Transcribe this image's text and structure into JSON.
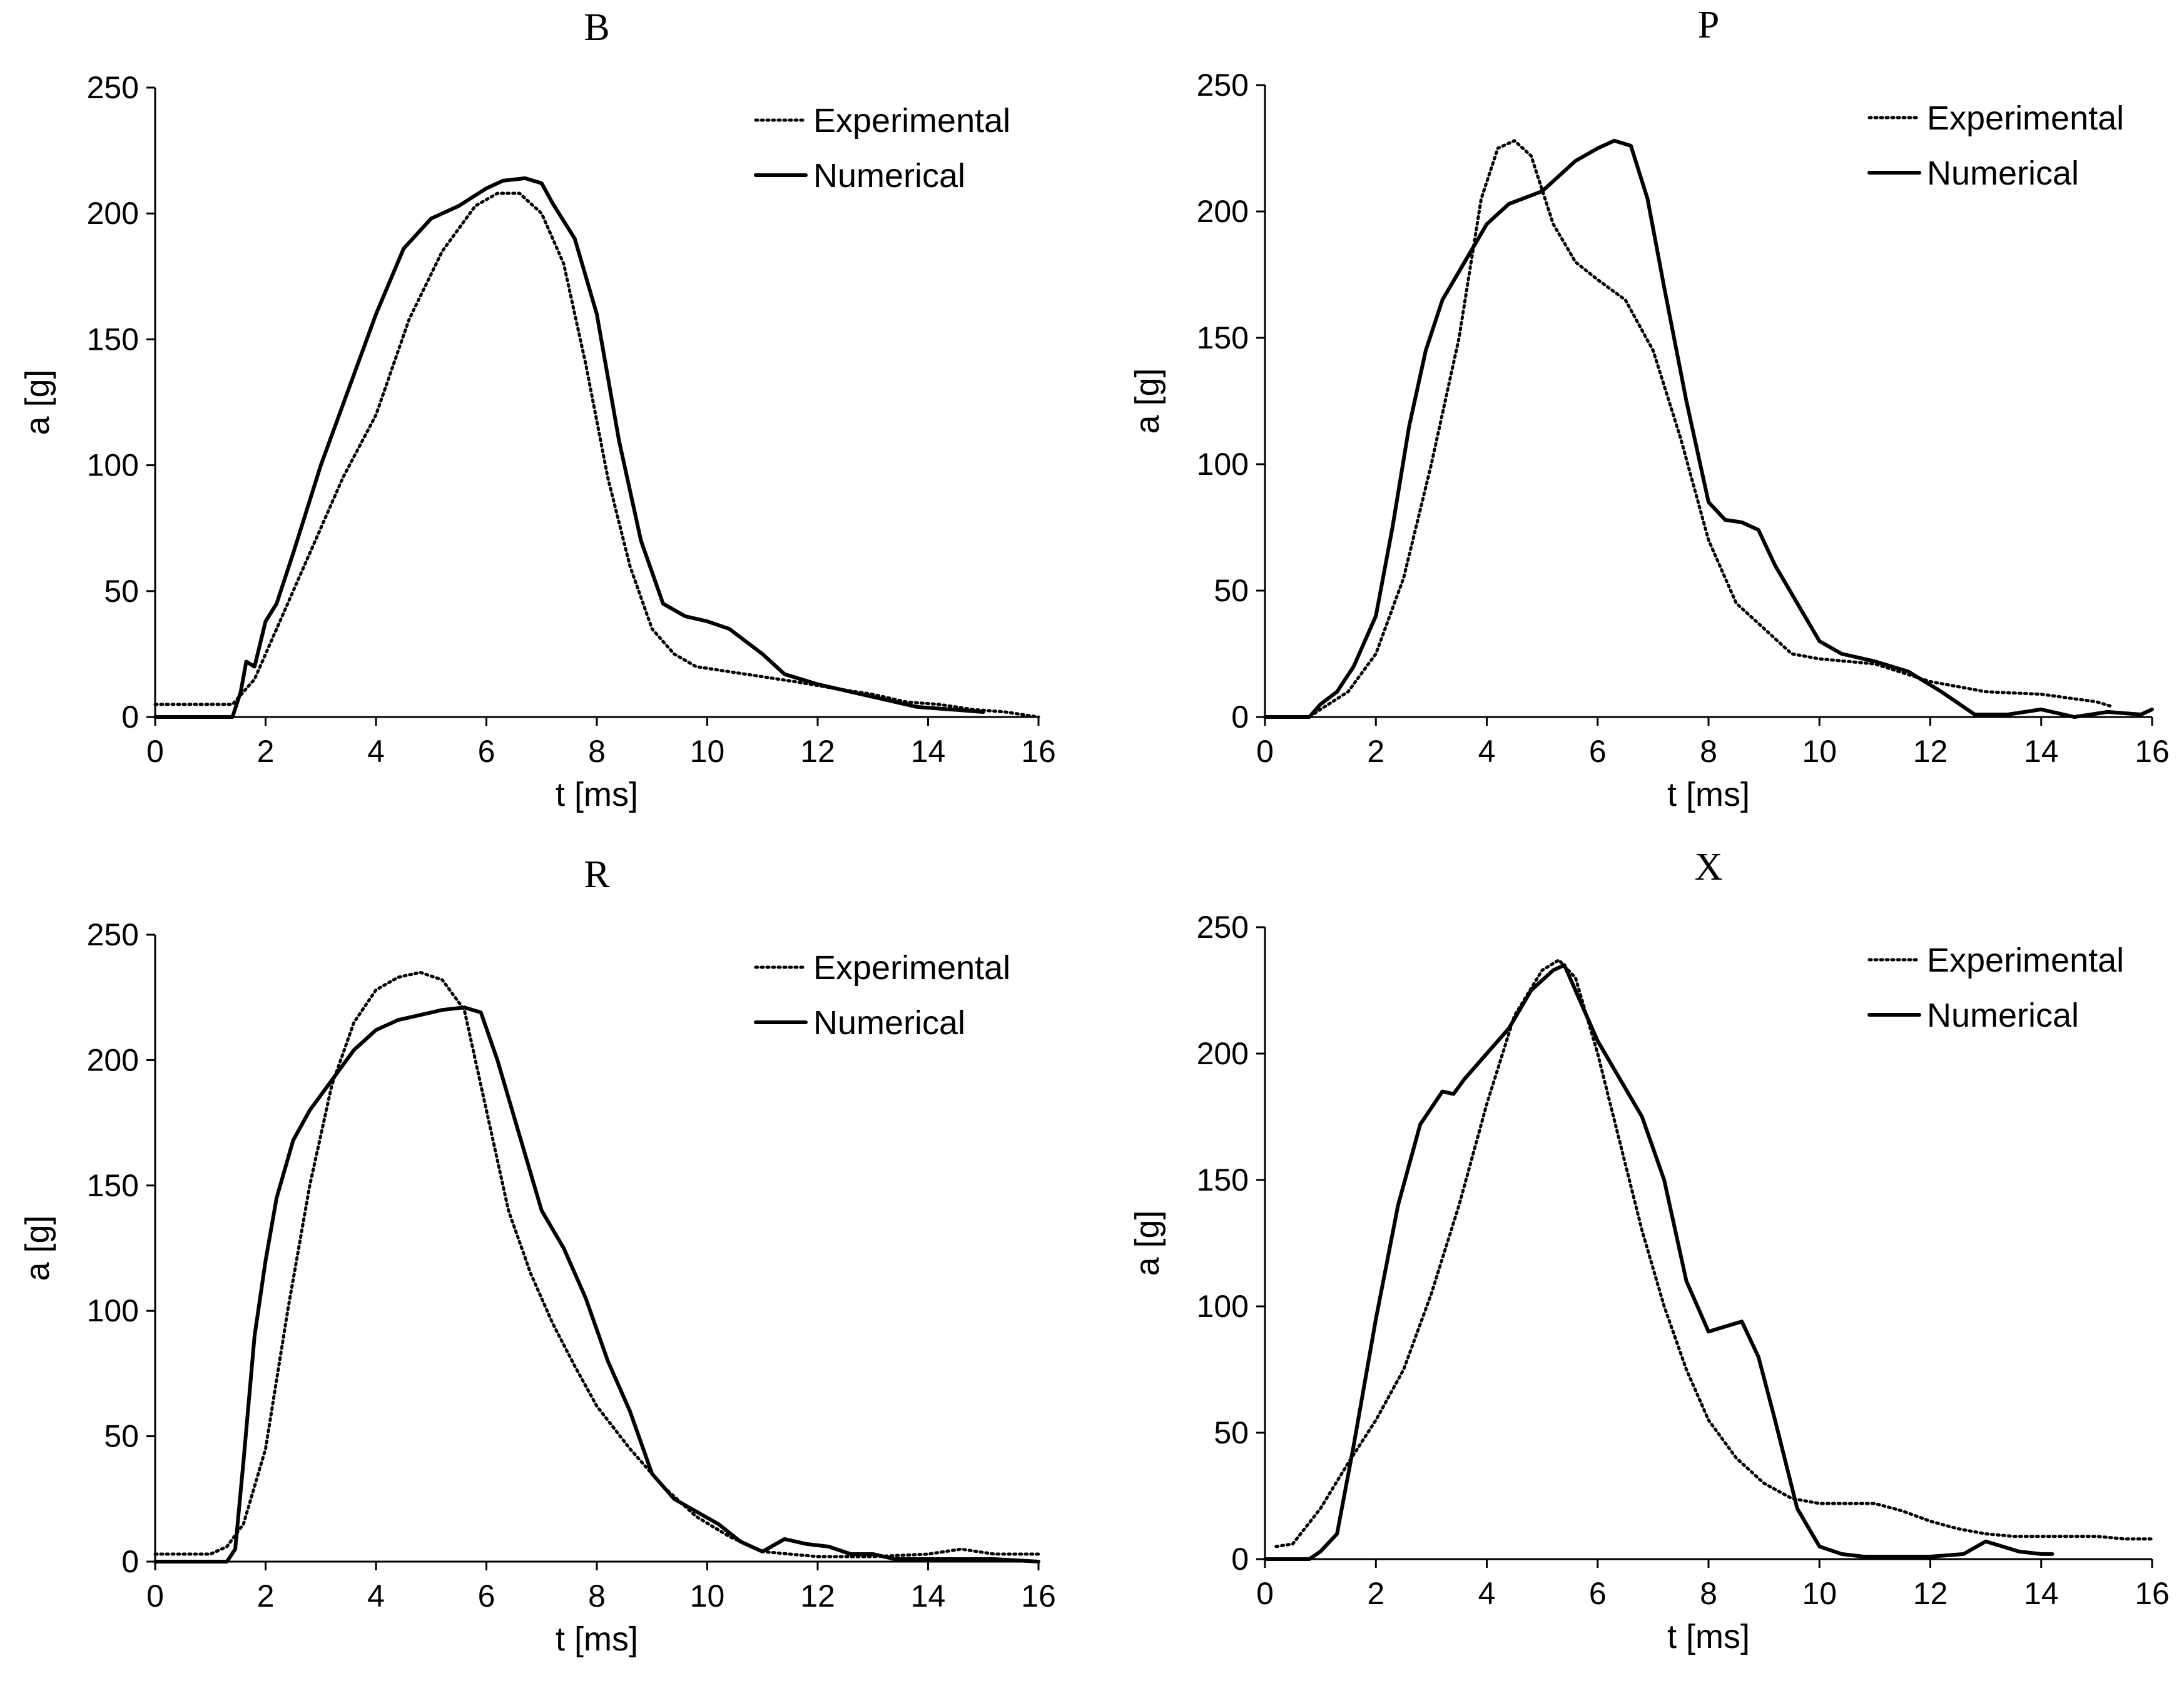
{
  "chart_data": [
    {
      "type": "line",
      "title": "B",
      "xlabel": "t [ms]",
      "ylabel": "a [g]",
      "xlim": [
        0,
        16
      ],
      "ylim": [
        0,
        250
      ],
      "xticks": [
        "0",
        "2",
        "4",
        "6",
        "8",
        "10",
        "12",
        "14",
        "16"
      ],
      "yticks": [
        "0",
        "50",
        "100",
        "150",
        "200",
        "250"
      ],
      "legend": "top-right",
      "series": [
        {
          "name": "Experimental",
          "style": "dotted",
          "x": [
            0,
            1.4,
            1.8,
            2.2,
            2.8,
            3.4,
            4.0,
            4.6,
            5.2,
            5.8,
            6.2,
            6.6,
            7.0,
            7.4,
            7.8,
            8.2,
            8.6,
            9.0,
            9.4,
            9.8,
            10.4,
            11.0,
            11.6,
            12.4,
            13.0,
            13.6,
            14.2,
            14.8,
            15.4,
            16
          ],
          "y": [
            5,
            5,
            15,
            35,
            65,
            95,
            120,
            158,
            185,
            203,
            208,
            208,
            200,
            180,
            140,
            95,
            60,
            35,
            25,
            20,
            18,
            16,
            14,
            11,
            9,
            6,
            5,
            3,
            2,
            0
          ]
        },
        {
          "name": "Numerical",
          "style": "solid",
          "x": [
            0,
            1.4,
            1.55,
            1.65,
            1.8,
            2.0,
            2.2,
            2.5,
            3.0,
            3.5,
            4.0,
            4.5,
            5.0,
            5.5,
            6.0,
            6.3,
            6.7,
            7.0,
            7.2,
            7.6,
            8.0,
            8.4,
            8.8,
            9.2,
            9.6,
            10.0,
            10.4,
            11.0,
            11.4,
            12.0,
            12.6,
            13.2,
            13.8,
            14.4,
            15.0
          ],
          "y": [
            0,
            0,
            10,
            22,
            20,
            38,
            45,
            65,
            100,
            130,
            160,
            186,
            198,
            203,
            210,
            213,
            214,
            212,
            204,
            190,
            160,
            110,
            70,
            45,
            40,
            38,
            35,
            25,
            17,
            13,
            10,
            7,
            4,
            3,
            2
          ]
        }
      ]
    },
    {
      "type": "line",
      "title": "P",
      "xlabel": "t [ms]",
      "ylabel": "a [g]",
      "xlim": [
        0,
        16
      ],
      "ylim": [
        0,
        250
      ],
      "xticks": [
        "0",
        "2",
        "4",
        "6",
        "8",
        "10",
        "12",
        "14",
        "16"
      ],
      "yticks": [
        "0",
        "50",
        "100",
        "150",
        "200",
        "250"
      ],
      "legend": "top-right",
      "series": [
        {
          "name": "Experimental",
          "style": "dotted",
          "x": [
            0,
            0.8,
            1.0,
            1.5,
            2.0,
            2.5,
            3.0,
            3.5,
            3.9,
            4.2,
            4.5,
            4.8,
            5.2,
            5.6,
            6.0,
            6.5,
            7.0,
            7.5,
            8.0,
            8.5,
            9.0,
            9.5,
            10.0,
            10.5,
            11.0,
            12.0,
            13.0,
            14.0,
            15.0,
            15.3
          ],
          "y": [
            0,
            0,
            3,
            10,
            25,
            55,
            100,
            150,
            205,
            225,
            228,
            222,
            195,
            180,
            173,
            165,
            145,
            110,
            70,
            45,
            35,
            25,
            23,
            22,
            21,
            14,
            10,
            9,
            6,
            4
          ]
        },
        {
          "name": "Numerical",
          "style": "solid",
          "x": [
            0,
            0.8,
            1.0,
            1.3,
            1.6,
            2.0,
            2.3,
            2.6,
            2.9,
            3.2,
            3.6,
            4.0,
            4.4,
            5.0,
            5.6,
            6.0,
            6.3,
            6.6,
            6.9,
            7.2,
            7.6,
            8.0,
            8.3,
            8.6,
            8.9,
            9.2,
            9.6,
            10.0,
            10.4,
            11.0,
            11.6,
            12.2,
            12.8,
            13.4,
            14.0,
            14.6,
            15.2,
            15.8,
            16.0
          ],
          "y": [
            0,
            0,
            5,
            10,
            20,
            40,
            75,
            115,
            145,
            165,
            180,
            195,
            203,
            208,
            220,
            225,
            228,
            226,
            205,
            170,
            125,
            85,
            78,
            77,
            74,
            60,
            45,
            30,
            25,
            22,
            18,
            10,
            1,
            1,
            3,
            0,
            2,
            1,
            3
          ]
        }
      ]
    },
    {
      "type": "line",
      "title": "R",
      "xlabel": "t [ms]",
      "ylabel": "a [g]",
      "xlim": [
        0,
        16
      ],
      "ylim": [
        0,
        250
      ],
      "xticks": [
        "0",
        "2",
        "4",
        "6",
        "8",
        "10",
        "12",
        "14",
        "16"
      ],
      "yticks": [
        "0",
        "50",
        "100",
        "150",
        "200",
        "250"
      ],
      "legend": "top-right",
      "series": [
        {
          "name": "Experimental",
          "style": "dotted",
          "x": [
            0,
            1.0,
            1.3,
            1.6,
            2.0,
            2.4,
            2.8,
            3.2,
            3.6,
            4.0,
            4.4,
            4.8,
            5.2,
            5.6,
            6.0,
            6.4,
            6.8,
            7.2,
            7.6,
            8.0,
            8.6,
            9.2,
            9.8,
            10.4,
            11.0,
            12.0,
            13.0,
            14.0,
            14.6,
            15.2,
            16.0
          ],
          "y": [
            3,
            3,
            6,
            15,
            45,
            100,
            150,
            190,
            215,
            228,
            233,
            235,
            232,
            220,
            180,
            140,
            115,
            95,
            78,
            62,
            45,
            30,
            18,
            10,
            4,
            2,
            2,
            3,
            5,
            3,
            3
          ]
        },
        {
          "name": "Numerical",
          "style": "solid",
          "x": [
            0,
            1.3,
            1.45,
            1.6,
            1.8,
            2.0,
            2.2,
            2.5,
            2.8,
            3.2,
            3.6,
            4.0,
            4.4,
            4.8,
            5.2,
            5.6,
            5.9,
            6.2,
            6.6,
            7.0,
            7.4,
            7.8,
            8.2,
            8.6,
            9.0,
            9.4,
            9.8,
            10.2,
            10.6,
            11.0,
            11.4,
            11.8,
            12.2,
            12.6,
            13.0,
            13.4,
            14.0,
            14.6,
            15.2,
            16.0
          ],
          "y": [
            0,
            0,
            5,
            40,
            90,
            120,
            145,
            168,
            180,
            192,
            204,
            212,
            216,
            218,
            220,
            221,
            219,
            200,
            170,
            140,
            125,
            105,
            80,
            60,
            35,
            25,
            20,
            15,
            8,
            4,
            9,
            7,
            6,
            3,
            3,
            1,
            1,
            1,
            1,
            0
          ]
        }
      ]
    },
    {
      "type": "line",
      "title": "X",
      "xlabel": "t [ms]",
      "ylabel": "a [g]",
      "xlim": [
        0,
        16
      ],
      "ylim": [
        0,
        250
      ],
      "xticks": [
        "0",
        "2",
        "4",
        "6",
        "8",
        "10",
        "12",
        "14",
        "16"
      ],
      "yticks": [
        "0",
        "50",
        "100",
        "150",
        "200",
        "250"
      ],
      "legend": "top-right",
      "series": [
        {
          "name": "Experimental",
          "style": "dotted",
          "x": [
            0.2,
            0.5,
            1.0,
            1.5,
            2.0,
            2.5,
            3.0,
            3.5,
            4.0,
            4.5,
            5.0,
            5.3,
            5.6,
            6.0,
            6.4,
            6.8,
            7.2,
            7.6,
            8.0,
            8.5,
            9.0,
            9.5,
            10.0,
            10.5,
            11.0,
            11.5,
            12.0,
            12.5,
            13.0,
            13.5,
            14.0,
            14.5,
            15.0,
            15.5,
            16.0
          ],
          "y": [
            5,
            6,
            20,
            38,
            55,
            75,
            105,
            140,
            180,
            215,
            233,
            237,
            230,
            200,
            165,
            130,
            100,
            75,
            55,
            40,
            30,
            24,
            22,
            22,
            22,
            19,
            15,
            12,
            10,
            9,
            9,
            9,
            9,
            8,
            8
          ]
        },
        {
          "name": "Numerical",
          "style": "solid",
          "x": [
            0,
            0.8,
            1.0,
            1.3,
            1.6,
            2.0,
            2.4,
            2.8,
            3.2,
            3.4,
            3.6,
            4.0,
            4.4,
            4.8,
            5.2,
            5.4,
            5.6,
            6.0,
            6.4,
            6.8,
            7.2,
            7.6,
            8.0,
            8.3,
            8.6,
            8.9,
            9.2,
            9.6,
            10.0,
            10.4,
            10.8,
            11.2,
            11.6,
            12.0,
            12.6,
            13.0,
            13.3,
            13.6,
            14.0,
            14.2
          ],
          "y": [
            0,
            0,
            3,
            10,
            45,
            95,
            140,
            172,
            185,
            184,
            190,
            200,
            210,
            225,
            233,
            235,
            225,
            205,
            190,
            175,
            150,
            110,
            90,
            92,
            94,
            80,
            55,
            20,
            5,
            2,
            1,
            1,
            1,
            1,
            2,
            7,
            5,
            3,
            2,
            2
          ]
        }
      ]
    }
  ]
}
